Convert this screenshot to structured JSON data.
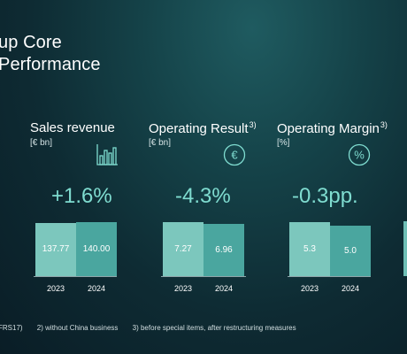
{
  "title_lines": [
    "up Core",
    "Performance"
  ],
  "colors": {
    "bar_prev": "#7cc7bd",
    "bar_curr": "#4aa69f",
    "accent": "#7fdcd0"
  },
  "footnotes": [
    "FRS17)",
    "2) without China business",
    "3) before special items, after restructuring measures"
  ],
  "chart_data": [
    {
      "type": "bar",
      "title": "Sales revenue",
      "footnote_mark": "",
      "unit": "[€ bn]",
      "icon": "bar-chart-icon",
      "change": "+1.6%",
      "categories": [
        "2023",
        "2024"
      ],
      "values": [
        137.77,
        140.0
      ],
      "value_labels": [
        "137.77",
        "140.00"
      ],
      "ylim": [
        0,
        160
      ]
    },
    {
      "type": "bar",
      "title": "Operating Result",
      "footnote_mark": "3)",
      "unit": "[€ bn]",
      "icon": "euro-icon",
      "change": "-4.3%",
      "categories": [
        "2023",
        "2024"
      ],
      "values": [
        7.27,
        6.96
      ],
      "value_labels": [
        "7.27",
        "6.96"
      ],
      "ylim": [
        0,
        8.3
      ]
    },
    {
      "type": "bar",
      "title": "Operating Margin",
      "footnote_mark": "3)",
      "unit": "[%]",
      "icon": "percent-icon",
      "change": "-0.3pp.",
      "categories": [
        "2023",
        "2024"
      ],
      "values": [
        5.3,
        5.0
      ],
      "value_labels": [
        "5.3",
        "5.0"
      ],
      "ylim": [
        0,
        6.1
      ]
    }
  ]
}
